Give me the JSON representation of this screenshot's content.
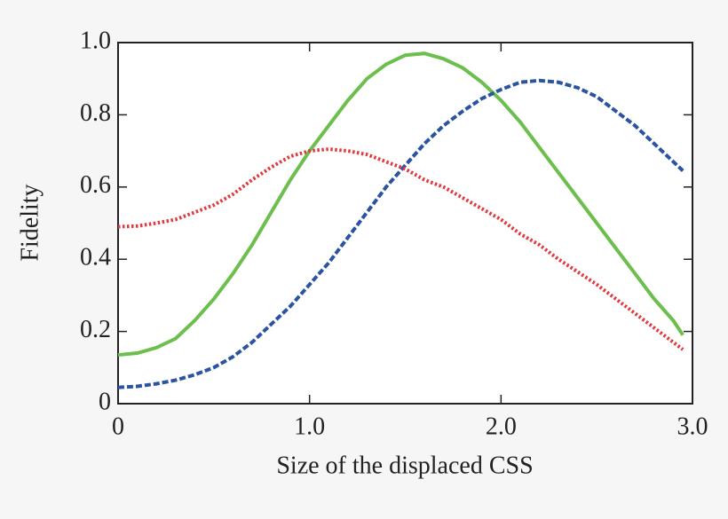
{
  "chart_data": {
    "type": "line",
    "xlabel": "Size of the displaced CSS",
    "ylabel": "Fidelity",
    "x": [
      0,
      0.1,
      0.2,
      0.3,
      0.4,
      0.5,
      0.6,
      0.7,
      0.8,
      0.9,
      1.0,
      1.1,
      1.2,
      1.3,
      1.4,
      1.5,
      1.6,
      1.7,
      1.8,
      1.9,
      2.0,
      2.1,
      2.2,
      2.3,
      2.4,
      2.5,
      2.6,
      2.7,
      2.8,
      2.9,
      2.95
    ],
    "series": [
      {
        "color": "#6cbf4c",
        "style": "solid",
        "values": [
          0.135,
          0.14,
          0.155,
          0.18,
          0.23,
          0.29,
          0.36,
          0.44,
          0.53,
          0.62,
          0.7,
          0.77,
          0.84,
          0.9,
          0.94,
          0.965,
          0.97,
          0.955,
          0.93,
          0.89,
          0.84,
          0.78,
          0.71,
          0.64,
          0.57,
          0.5,
          0.43,
          0.36,
          0.29,
          0.23,
          0.19
        ]
      },
      {
        "color": "#2a54a3",
        "style": "dashed",
        "values": [
          0.045,
          0.048,
          0.055,
          0.065,
          0.08,
          0.1,
          0.13,
          0.17,
          0.22,
          0.27,
          0.33,
          0.39,
          0.46,
          0.53,
          0.6,
          0.66,
          0.72,
          0.77,
          0.81,
          0.845,
          0.87,
          0.89,
          0.895,
          0.89,
          0.875,
          0.85,
          0.81,
          0.77,
          0.72,
          0.67,
          0.645
        ]
      },
      {
        "color": "#e0393e",
        "style": "dotted",
        "values": [
          0.49,
          0.492,
          0.5,
          0.51,
          0.53,
          0.55,
          0.58,
          0.62,
          0.655,
          0.685,
          0.7,
          0.705,
          0.7,
          0.69,
          0.67,
          0.65,
          0.62,
          0.6,
          0.57,
          0.54,
          0.51,
          0.47,
          0.44,
          0.4,
          0.365,
          0.33,
          0.29,
          0.25,
          0.21,
          0.17,
          0.15
        ]
      }
    ],
    "xlim": [
      0,
      3
    ],
    "ylim": [
      0,
      1
    ],
    "xticks": [
      0,
      {
        "value": 1,
        "label": "1.0"
      },
      {
        "value": 2,
        "label": "2.0"
      },
      {
        "value": 3,
        "label": "3.0"
      }
    ],
    "yticks": [
      0,
      0.2,
      0.4,
      0.6,
      0.8,
      {
        "value": 1,
        "label": "1.0"
      }
    ],
    "grid": false
  }
}
